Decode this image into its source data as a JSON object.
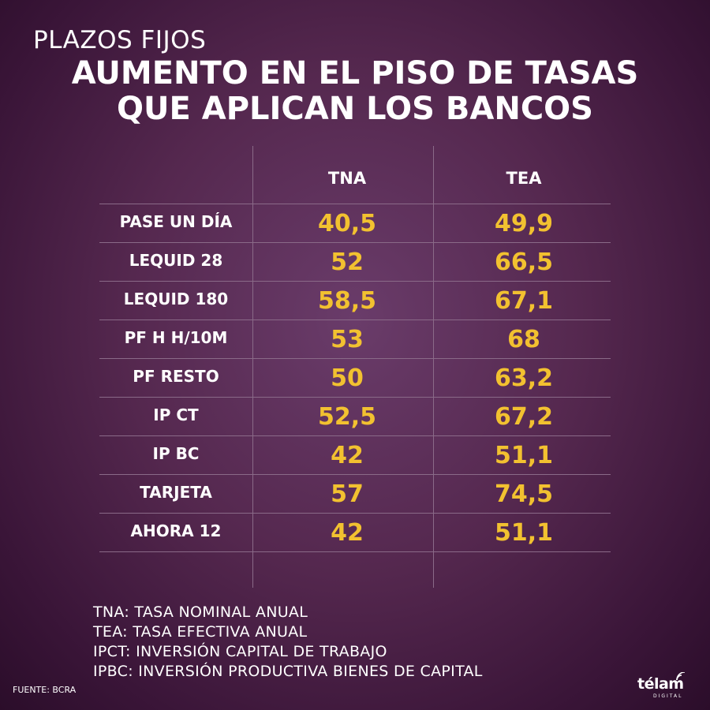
{
  "header": {
    "kicker": "PLAZOS FIJOS",
    "title_line1": "AUMENTO EN EL PISO DE TASAS",
    "title_line2": "QUE APLICAN LOS BANCOS"
  },
  "chart_data": {
    "type": "table",
    "columns": [
      "TNA",
      "TEA"
    ],
    "rows": [
      {
        "label": "PASE UN DÍA",
        "TNA": "40,5",
        "TEA": "49,9"
      },
      {
        "label": "LEQUID 28",
        "TNA": "52",
        "TEA": "66,5"
      },
      {
        "label": "LEQUID 180",
        "TNA": "58,5",
        "TEA": "67,1"
      },
      {
        "label": "PF H H/10M",
        "TNA": "53",
        "TEA": "68"
      },
      {
        "label": "PF RESTO",
        "TNA": "50",
        "TEA": "63,2"
      },
      {
        "label": "IP CT",
        "TNA": "52,5",
        "TEA": "67,2"
      },
      {
        "label": "IP BC",
        "TNA": "42",
        "TEA": "51,1"
      },
      {
        "label": "TARJETA",
        "TNA": "57",
        "TEA": "74,5"
      },
      {
        "label": "AHORA 12",
        "TNA": "42",
        "TEA": "51,1"
      }
    ],
    "value_color": "#f2c130"
  },
  "legend": [
    "TNA: TASA NOMINAL ANUAL",
    "TEA: TASA EFECTIVA ANUAL",
    "IPCT: INVERSIÓN CAPITAL DE TRABAJO",
    "IPBC: INVERSIÓN PRODUCTIVA BIENES DE CAPITAL"
  ],
  "footer": {
    "source": "FUENTE: BCRA",
    "logo_text": "télam",
    "logo_sub": "DIGITAL"
  }
}
